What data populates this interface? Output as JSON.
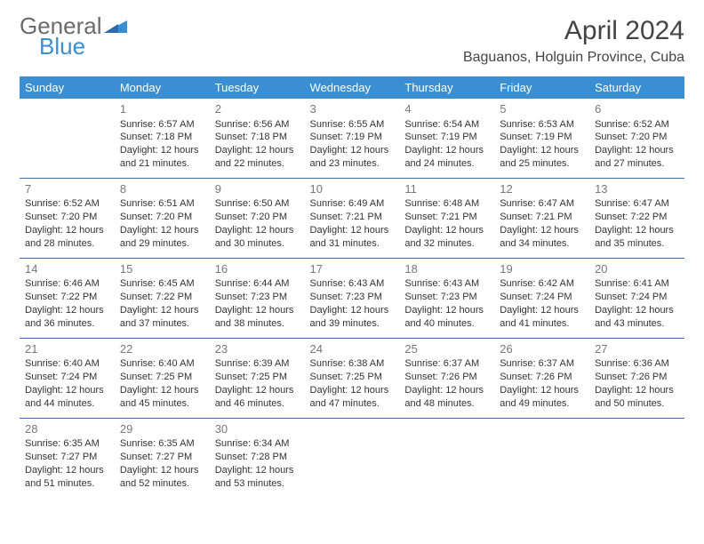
{
  "logo": {
    "word1": "General",
    "word2": "Blue",
    "color1": "#6b6b6b",
    "color2": "#3a8fd4"
  },
  "title": "April 2024",
  "location": "Baguanos, Holguin Province, Cuba",
  "header_bg": "#3a8fd4",
  "row_border": "#3a6fa8",
  "weekdays": [
    "Sunday",
    "Monday",
    "Tuesday",
    "Wednesday",
    "Thursday",
    "Friday",
    "Saturday"
  ],
  "weeks": [
    [
      null,
      {
        "n": "1",
        "sr": "Sunrise: 6:57 AM",
        "ss": "Sunset: 7:18 PM",
        "d1": "Daylight: 12 hours",
        "d2": "and 21 minutes."
      },
      {
        "n": "2",
        "sr": "Sunrise: 6:56 AM",
        "ss": "Sunset: 7:18 PM",
        "d1": "Daylight: 12 hours",
        "d2": "and 22 minutes."
      },
      {
        "n": "3",
        "sr": "Sunrise: 6:55 AM",
        "ss": "Sunset: 7:19 PM",
        "d1": "Daylight: 12 hours",
        "d2": "and 23 minutes."
      },
      {
        "n": "4",
        "sr": "Sunrise: 6:54 AM",
        "ss": "Sunset: 7:19 PM",
        "d1": "Daylight: 12 hours",
        "d2": "and 24 minutes."
      },
      {
        "n": "5",
        "sr": "Sunrise: 6:53 AM",
        "ss": "Sunset: 7:19 PM",
        "d1": "Daylight: 12 hours",
        "d2": "and 25 minutes."
      },
      {
        "n": "6",
        "sr": "Sunrise: 6:52 AM",
        "ss": "Sunset: 7:20 PM",
        "d1": "Daylight: 12 hours",
        "d2": "and 27 minutes."
      }
    ],
    [
      {
        "n": "7",
        "sr": "Sunrise: 6:52 AM",
        "ss": "Sunset: 7:20 PM",
        "d1": "Daylight: 12 hours",
        "d2": "and 28 minutes."
      },
      {
        "n": "8",
        "sr": "Sunrise: 6:51 AM",
        "ss": "Sunset: 7:20 PM",
        "d1": "Daylight: 12 hours",
        "d2": "and 29 minutes."
      },
      {
        "n": "9",
        "sr": "Sunrise: 6:50 AM",
        "ss": "Sunset: 7:20 PM",
        "d1": "Daylight: 12 hours",
        "d2": "and 30 minutes."
      },
      {
        "n": "10",
        "sr": "Sunrise: 6:49 AM",
        "ss": "Sunset: 7:21 PM",
        "d1": "Daylight: 12 hours",
        "d2": "and 31 minutes."
      },
      {
        "n": "11",
        "sr": "Sunrise: 6:48 AM",
        "ss": "Sunset: 7:21 PM",
        "d1": "Daylight: 12 hours",
        "d2": "and 32 minutes."
      },
      {
        "n": "12",
        "sr": "Sunrise: 6:47 AM",
        "ss": "Sunset: 7:21 PM",
        "d1": "Daylight: 12 hours",
        "d2": "and 34 minutes."
      },
      {
        "n": "13",
        "sr": "Sunrise: 6:47 AM",
        "ss": "Sunset: 7:22 PM",
        "d1": "Daylight: 12 hours",
        "d2": "and 35 minutes."
      }
    ],
    [
      {
        "n": "14",
        "sr": "Sunrise: 6:46 AM",
        "ss": "Sunset: 7:22 PM",
        "d1": "Daylight: 12 hours",
        "d2": "and 36 minutes."
      },
      {
        "n": "15",
        "sr": "Sunrise: 6:45 AM",
        "ss": "Sunset: 7:22 PM",
        "d1": "Daylight: 12 hours",
        "d2": "and 37 minutes."
      },
      {
        "n": "16",
        "sr": "Sunrise: 6:44 AM",
        "ss": "Sunset: 7:23 PM",
        "d1": "Daylight: 12 hours",
        "d2": "and 38 minutes."
      },
      {
        "n": "17",
        "sr": "Sunrise: 6:43 AM",
        "ss": "Sunset: 7:23 PM",
        "d1": "Daylight: 12 hours",
        "d2": "and 39 minutes."
      },
      {
        "n": "18",
        "sr": "Sunrise: 6:43 AM",
        "ss": "Sunset: 7:23 PM",
        "d1": "Daylight: 12 hours",
        "d2": "and 40 minutes."
      },
      {
        "n": "19",
        "sr": "Sunrise: 6:42 AM",
        "ss": "Sunset: 7:24 PM",
        "d1": "Daylight: 12 hours",
        "d2": "and 41 minutes."
      },
      {
        "n": "20",
        "sr": "Sunrise: 6:41 AM",
        "ss": "Sunset: 7:24 PM",
        "d1": "Daylight: 12 hours",
        "d2": "and 43 minutes."
      }
    ],
    [
      {
        "n": "21",
        "sr": "Sunrise: 6:40 AM",
        "ss": "Sunset: 7:24 PM",
        "d1": "Daylight: 12 hours",
        "d2": "and 44 minutes."
      },
      {
        "n": "22",
        "sr": "Sunrise: 6:40 AM",
        "ss": "Sunset: 7:25 PM",
        "d1": "Daylight: 12 hours",
        "d2": "and 45 minutes."
      },
      {
        "n": "23",
        "sr": "Sunrise: 6:39 AM",
        "ss": "Sunset: 7:25 PM",
        "d1": "Daylight: 12 hours",
        "d2": "and 46 minutes."
      },
      {
        "n": "24",
        "sr": "Sunrise: 6:38 AM",
        "ss": "Sunset: 7:25 PM",
        "d1": "Daylight: 12 hours",
        "d2": "and 47 minutes."
      },
      {
        "n": "25",
        "sr": "Sunrise: 6:37 AM",
        "ss": "Sunset: 7:26 PM",
        "d1": "Daylight: 12 hours",
        "d2": "and 48 minutes."
      },
      {
        "n": "26",
        "sr": "Sunrise: 6:37 AM",
        "ss": "Sunset: 7:26 PM",
        "d1": "Daylight: 12 hours",
        "d2": "and 49 minutes."
      },
      {
        "n": "27",
        "sr": "Sunrise: 6:36 AM",
        "ss": "Sunset: 7:26 PM",
        "d1": "Daylight: 12 hours",
        "d2": "and 50 minutes."
      }
    ],
    [
      {
        "n": "28",
        "sr": "Sunrise: 6:35 AM",
        "ss": "Sunset: 7:27 PM",
        "d1": "Daylight: 12 hours",
        "d2": "and 51 minutes."
      },
      {
        "n": "29",
        "sr": "Sunrise: 6:35 AM",
        "ss": "Sunset: 7:27 PM",
        "d1": "Daylight: 12 hours",
        "d2": "and 52 minutes."
      },
      {
        "n": "30",
        "sr": "Sunrise: 6:34 AM",
        "ss": "Sunset: 7:28 PM",
        "d1": "Daylight: 12 hours",
        "d2": "and 53 minutes."
      },
      null,
      null,
      null,
      null
    ]
  ]
}
